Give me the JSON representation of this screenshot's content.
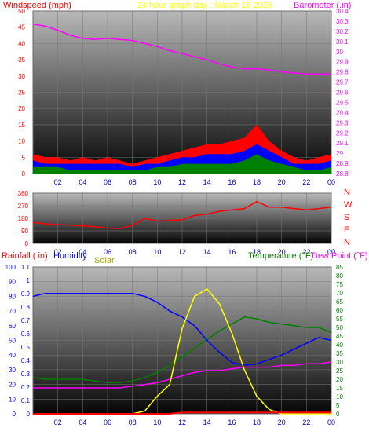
{
  "title": "24 hour graph day : March 16 2026",
  "colors": {
    "wind_avg": "#0000ff",
    "wind_gust": "#ff0000",
    "wind_low": "#008000",
    "barometer": "#ff00ff",
    "direction": "#ff0000",
    "rain": "#ff0000",
    "humidity": "#0000ff",
    "solar": "#ffff00",
    "temperature": "#008000",
    "dewpoint": "#ff00ff",
    "title": "#ffff00",
    "left_axis": "#ff0000",
    "solar_label": "#aaaa00"
  },
  "x_ticks": [
    "02",
    "04",
    "06",
    "08",
    "10",
    "12",
    "14",
    "16",
    "18",
    "20",
    "22",
    "00"
  ],
  "chart_data": [
    {
      "type": "line",
      "ylabel": "Windspeed (mph)",
      "y2label": "Barometer (.in)",
      "ylim": [
        0,
        50
      ],
      "y2lim": [
        28.8,
        30.4
      ],
      "y_ticks": [
        "0",
        "5",
        "10",
        "15",
        "20",
        "25",
        "30",
        "35",
        "40",
        "45",
        "50"
      ],
      "y2_ticks": [
        "28.8",
        "28.9",
        "29",
        "29.1",
        "29.2",
        "29.3",
        "29.4",
        "29.5",
        "29.6",
        "29.7",
        "29.8",
        "29.9",
        "30",
        "30.1",
        "30.2",
        "30.3",
        "30.4"
      ],
      "x": [
        0,
        1,
        2,
        3,
        4,
        5,
        6,
        7,
        8,
        9,
        10,
        11,
        12,
        13,
        14,
        15,
        16,
        17,
        18,
        19,
        20,
        21,
        22,
        23,
        24
      ],
      "series": [
        {
          "key": "gust",
          "axis": "y",
          "values": [
            6,
            5,
            5,
            4,
            5,
            4,
            5,
            4,
            3,
            4,
            5,
            6,
            7,
            8,
            9,
            9,
            10,
            11,
            15,
            10,
            7,
            5,
            4,
            5,
            6
          ]
        },
        {
          "key": "avg",
          "axis": "y",
          "values": [
            4,
            3,
            3,
            3,
            3,
            3,
            3,
            3,
            2,
            3,
            3,
            4,
            5,
            5,
            6,
            6,
            6,
            7,
            9,
            7,
            5,
            3,
            3,
            3,
            4
          ]
        },
        {
          "key": "low",
          "axis": "y",
          "values": [
            2,
            2,
            2,
            1,
            1,
            1,
            1,
            1,
            1,
            1,
            2,
            2,
            3,
            3,
            3,
            3,
            3,
            4,
            6,
            4,
            3,
            2,
            1,
            1,
            2
          ]
        },
        {
          "key": "barometer",
          "axis": "y2",
          "values": [
            30.27,
            30.25,
            30.21,
            30.16,
            30.13,
            30.12,
            30.13,
            30.12,
            30.11,
            30.08,
            30.05,
            30.01,
            29.98,
            29.95,
            29.92,
            29.88,
            29.85,
            29.83,
            29.83,
            29.82,
            29.8,
            29.79,
            29.78,
            29.78,
            29.78
          ]
        }
      ]
    },
    {
      "type": "scatter",
      "y_ticks": [
        "0",
        "90",
        "180",
        "270",
        "360"
      ],
      "y2_ticks": [
        "N",
        "W",
        "S",
        "E",
        "N"
      ],
      "ylim": [
        0,
        360
      ],
      "x": [
        0,
        1,
        2,
        3,
        4,
        5,
        6,
        7,
        8,
        9,
        10,
        11,
        12,
        13,
        14,
        15,
        16,
        17,
        18,
        19,
        20,
        21,
        22,
        23,
        24
      ],
      "series": [
        {
          "key": "direction",
          "values": [
            150,
            140,
            135,
            130,
            125,
            120,
            110,
            105,
            130,
            180,
            160,
            165,
            170,
            200,
            210,
            230,
            240,
            250,
            300,
            260,
            260,
            250,
            240,
            250,
            260
          ]
        }
      ]
    },
    {
      "type": "line",
      "rain_label": "Rainfall (.in)",
      "humidity_label": "Humidity",
      "solar_label": "Solar",
      "temperature_label": "Temperature (°F)",
      "dewpoint_label": "Dew Point (°F)",
      "y_ticks_humidity": [
        "0",
        "10",
        "20",
        "30",
        "40",
        "50",
        "60",
        "70",
        "80",
        "90",
        "100"
      ],
      "y_ticks_rain": [
        "0",
        "0.1",
        "0.2",
        "0.3",
        "0.4",
        "0.5",
        "0.6",
        "0.7",
        "0.8",
        "0.9",
        "1",
        "1.1"
      ],
      "y2_ticks": [
        "0",
        "5",
        "10",
        "15",
        "20",
        "25",
        "30",
        "35",
        "40",
        "45",
        "50",
        "55",
        "60",
        "65",
        "70",
        "75",
        "80",
        "85"
      ],
      "humidity_lim": [
        0,
        100
      ],
      "rain_lim": [
        0,
        1.1
      ],
      "temp_lim": [
        0,
        85
      ],
      "x": [
        0,
        1,
        2,
        3,
        4,
        5,
        6,
        7,
        8,
        9,
        10,
        11,
        12,
        13,
        14,
        15,
        16,
        17,
        18,
        19,
        20,
        21,
        22,
        23,
        24
      ],
      "series": [
        {
          "key": "humidity",
          "axis": "humidity",
          "values": [
            80,
            82,
            82,
            82,
            82,
            82,
            82,
            82,
            82,
            80,
            76,
            70,
            66,
            60,
            50,
            42,
            35,
            33,
            34,
            37,
            40,
            44,
            48,
            52,
            50
          ]
        },
        {
          "key": "temperature",
          "axis": "temp",
          "values": [
            21,
            20,
            20,
            20,
            20,
            19,
            18,
            18,
            19,
            21,
            24,
            28,
            33,
            38,
            43,
            48,
            52,
            56,
            55,
            53,
            52,
            51,
            50,
            50,
            47
          ]
        },
        {
          "key": "dewpoint",
          "axis": "temp",
          "values": [
            15,
            15,
            15,
            15,
            15,
            15,
            15,
            15,
            16,
            17,
            18,
            20,
            22,
            24,
            25,
            25,
            26,
            27,
            27,
            27,
            28,
            28,
            29,
            29,
            30
          ]
        },
        {
          "key": "solar",
          "axis": "solar",
          "values": [
            0,
            0,
            0,
            0,
            0,
            0,
            0,
            0,
            0,
            2,
            12,
            20,
            58,
            80,
            85,
            75,
            55,
            30,
            12,
            3,
            0,
            0,
            0,
            0,
            0
          ]
        },
        {
          "key": "rain",
          "axis": "rain",
          "values": [
            0,
            0,
            0,
            0,
            0,
            0,
            0,
            0,
            0,
            0,
            0,
            0,
            0.01,
            0.01,
            0.01,
            0.01,
            0.01,
            0.01,
            0.01,
            0.01,
            0.01,
            0.01,
            0.01,
            0.01,
            0.01
          ]
        }
      ]
    }
  ]
}
